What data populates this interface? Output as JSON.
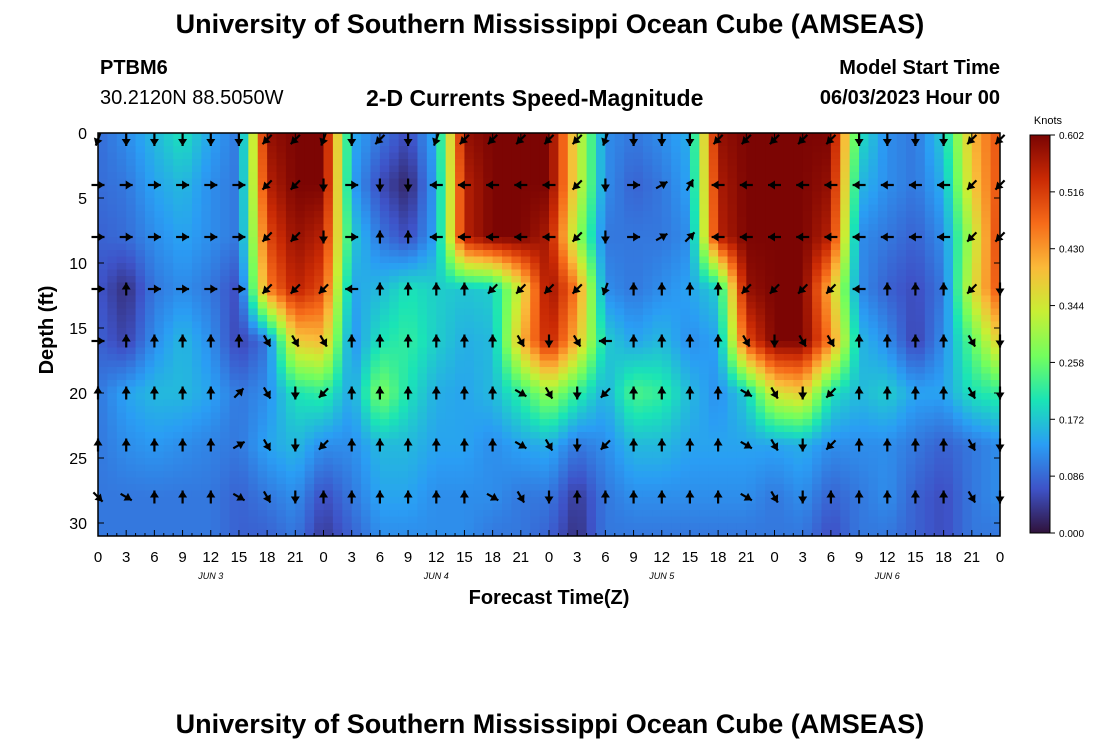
{
  "header": {
    "title": "University of Southern Mississippi Ocean Cube (AMSEAS)",
    "station": "PTBM6",
    "coords": "30.2120N  88.5050W",
    "plot_title": "2-D Currents Speed-Magnitude",
    "model_start_label": "Model Start Time",
    "model_start_value": "06/03/2023 Hour 00"
  },
  "footer": {
    "title": "University of Southern Mississippi Ocean Cube (AMSEAS)"
  },
  "chart_data": {
    "type": "heatmap",
    "title": "2-D Currents Speed-Magnitude",
    "xlabel": "Forecast Time(Z)",
    "ylabel": "Depth (ft)",
    "xlim": [
      0,
      96
    ],
    "ylim": [
      31,
      0
    ],
    "x_ticks": [
      0,
      3,
      6,
      9,
      12,
      15,
      18,
      21,
      24,
      27,
      30,
      33,
      36,
      39,
      42,
      45,
      48,
      51,
      54,
      57,
      60,
      63,
      66,
      69,
      72,
      75,
      78,
      81,
      84,
      87,
      90,
      93,
      96
    ],
    "x_tick_labels": [
      "0",
      "3",
      "6",
      "9",
      "12",
      "15",
      "18",
      "21",
      "0",
      "3",
      "6",
      "9",
      "12",
      "15",
      "18",
      "21",
      "0",
      "3",
      "6",
      "9",
      "12",
      "15",
      "18",
      "21",
      "0",
      "3",
      "6",
      "9",
      "12",
      "15",
      "18",
      "21",
      "0"
    ],
    "y_ticks": [
      0,
      5,
      10,
      15,
      20,
      25,
      30
    ],
    "y_tick_labels": [
      "0",
      "5",
      "10",
      "15",
      "20",
      "25",
      "30"
    ],
    "day_labels": [
      {
        "hour": 12,
        "label": "JUN 3"
      },
      {
        "hour": 36,
        "label": "JUN 4"
      },
      {
        "hour": 60,
        "label": "JUN 5"
      },
      {
        "hour": 84,
        "label": "JUN 6"
      }
    ],
    "colorbar": {
      "title": "Knots",
      "range": [
        0,
        0.602
      ],
      "ticks": [
        "0.602",
        "0.516",
        "0.430",
        "0.344",
        "0.258",
        "0.172",
        "0.086",
        "0.000"
      ],
      "colors": [
        "#30123b",
        "#3e53c8",
        "#2a9df4",
        "#1ae4b6",
        "#72fe5e",
        "#c8ef34",
        "#faba39",
        "#f66b19",
        "#ca2a04",
        "#7a0403"
      ]
    },
    "speed_field": {
      "hours": [
        0,
        3,
        6,
        9,
        12,
        15,
        18,
        21,
        24,
        27,
        30,
        33,
        36,
        39,
        42,
        45,
        48,
        51,
        54,
        57,
        60,
        63,
        66,
        69,
        72,
        75,
        78,
        81,
        84,
        87,
        90,
        93,
        96
      ],
      "depths": [
        0,
        4,
        8,
        12,
        16,
        20,
        24,
        28,
        31
      ],
      "values": [
        [
          0.09,
          0.12,
          0.16,
          0.2,
          0.14,
          0.1,
          0.58,
          0.6,
          0.6,
          0.15,
          0.1,
          0.06,
          0.15,
          0.58,
          0.6,
          0.6,
          0.6,
          0.35,
          0.12,
          0.1,
          0.12,
          0.15,
          0.58,
          0.6,
          0.6,
          0.6,
          0.6,
          0.2,
          0.12,
          0.1,
          0.18,
          0.4,
          0.5
        ],
        [
          0.09,
          0.1,
          0.14,
          0.16,
          0.12,
          0.1,
          0.55,
          0.6,
          0.6,
          0.14,
          0.06,
          0.02,
          0.14,
          0.55,
          0.6,
          0.6,
          0.6,
          0.35,
          0.12,
          0.08,
          0.1,
          0.14,
          0.56,
          0.6,
          0.6,
          0.6,
          0.58,
          0.16,
          0.12,
          0.1,
          0.15,
          0.38,
          0.5
        ],
        [
          0.08,
          0.09,
          0.12,
          0.14,
          0.12,
          0.1,
          0.5,
          0.58,
          0.55,
          0.18,
          0.1,
          0.06,
          0.14,
          0.55,
          0.6,
          0.6,
          0.56,
          0.3,
          0.1,
          0.1,
          0.1,
          0.12,
          0.55,
          0.6,
          0.6,
          0.6,
          0.55,
          0.12,
          0.1,
          0.08,
          0.12,
          0.32,
          0.52
        ],
        [
          0.07,
          0.03,
          0.1,
          0.12,
          0.1,
          0.06,
          0.45,
          0.55,
          0.5,
          0.14,
          0.16,
          0.2,
          0.18,
          0.17,
          0.18,
          0.35,
          0.58,
          0.45,
          0.12,
          0.1,
          0.12,
          0.14,
          0.18,
          0.58,
          0.6,
          0.6,
          0.4,
          0.12,
          0.08,
          0.06,
          0.1,
          0.35,
          0.5
        ],
        [
          0.08,
          0.05,
          0.12,
          0.16,
          0.12,
          0.05,
          0.1,
          0.38,
          0.4,
          0.12,
          0.2,
          0.22,
          0.18,
          0.15,
          0.16,
          0.4,
          0.55,
          0.4,
          0.18,
          0.14,
          0.16,
          0.12,
          0.14,
          0.5,
          0.6,
          0.6,
          0.45,
          0.16,
          0.12,
          0.05,
          0.12,
          0.25,
          0.38
        ],
        [
          0.1,
          0.14,
          0.16,
          0.16,
          0.14,
          0.1,
          0.12,
          0.2,
          0.22,
          0.14,
          0.28,
          0.2,
          0.15,
          0.14,
          0.16,
          0.22,
          0.3,
          0.22,
          0.15,
          0.24,
          0.22,
          0.16,
          0.12,
          0.18,
          0.35,
          0.38,
          0.2,
          0.16,
          0.18,
          0.14,
          0.14,
          0.2,
          0.22
        ],
        [
          0.1,
          0.12,
          0.13,
          0.12,
          0.11,
          0.1,
          0.14,
          0.16,
          0.12,
          0.12,
          0.16,
          0.16,
          0.14,
          0.14,
          0.12,
          0.14,
          0.15,
          0.1,
          0.12,
          0.16,
          0.16,
          0.14,
          0.14,
          0.14,
          0.14,
          0.15,
          0.12,
          0.12,
          0.12,
          0.1,
          0.08,
          0.1,
          0.12
        ],
        [
          0.1,
          0.1,
          0.1,
          0.1,
          0.1,
          0.08,
          0.1,
          0.12,
          0.06,
          0.1,
          0.14,
          0.14,
          0.12,
          0.12,
          0.12,
          0.1,
          0.1,
          0.04,
          0.1,
          0.12,
          0.12,
          0.12,
          0.12,
          0.12,
          0.1,
          0.12,
          0.08,
          0.1,
          0.12,
          0.08,
          0.06,
          0.1,
          0.12
        ],
        [
          0.1,
          0.1,
          0.1,
          0.1,
          0.1,
          0.08,
          0.08,
          0.1,
          0.04,
          0.08,
          0.12,
          0.12,
          0.12,
          0.12,
          0.1,
          0.1,
          0.08,
          0.03,
          0.1,
          0.1,
          0.1,
          0.1,
          0.1,
          0.1,
          0.1,
          0.1,
          0.06,
          0.1,
          0.1,
          0.08,
          0.06,
          0.1,
          0.1
        ]
      ]
    },
    "vectors": {
      "hours": [
        0,
        3,
        6,
        9,
        12,
        15,
        18,
        21,
        24,
        27,
        30,
        33,
        36,
        39,
        42,
        45,
        48,
        51,
        54,
        57,
        60,
        63,
        66,
        69,
        72,
        75,
        78,
        81,
        84,
        87,
        90,
        93,
        96
      ],
      "depths": [
        0.5,
        4,
        8,
        12,
        16,
        20,
        24,
        28
      ],
      "directions_deg": [
        [
          200,
          180,
          180,
          180,
          180,
          180,
          225,
          225,
          200,
          180,
          225,
          180,
          200,
          225,
          225,
          225,
          225,
          225,
          200,
          180,
          180,
          180,
          225,
          225,
          225,
          225,
          225,
          180,
          180,
          180,
          180,
          225,
          225
        ],
        [
          90,
          90,
          90,
          90,
          90,
          90,
          225,
          225,
          180,
          90,
          180,
          180,
          270,
          270,
          270,
          270,
          270,
          225,
          180,
          90,
          60,
          30,
          270,
          270,
          270,
          270,
          270,
          270,
          270,
          270,
          270,
          225,
          225
        ],
        [
          90,
          90,
          90,
          90,
          90,
          90,
          225,
          225,
          180,
          90,
          0,
          0,
          270,
          270,
          270,
          270,
          270,
          225,
          180,
          90,
          60,
          45,
          270,
          270,
          270,
          270,
          270,
          270,
          270,
          270,
          270,
          225,
          225
        ],
        [
          90,
          0,
          90,
          90,
          90,
          90,
          225,
          225,
          225,
          270,
          0,
          0,
          0,
          0,
          225,
          225,
          225,
          225,
          200,
          0,
          0,
          0,
          0,
          225,
          225,
          225,
          225,
          270,
          0,
          0,
          0,
          225,
          180
        ],
        [
          90,
          0,
          0,
          0,
          0,
          0,
          150,
          150,
          150,
          0,
          0,
          0,
          0,
          0,
          0,
          150,
          180,
          150,
          270,
          0,
          0,
          0,
          0,
          150,
          180,
          150,
          150,
          0,
          0,
          0,
          0,
          150,
          180
        ],
        [
          0,
          0,
          0,
          0,
          0,
          45,
          150,
          180,
          225,
          0,
          0,
          0,
          0,
          0,
          0,
          120,
          150,
          180,
          225,
          0,
          0,
          0,
          0,
          120,
          150,
          180,
          225,
          0,
          0,
          0,
          0,
          150,
          180
        ],
        [
          0,
          0,
          0,
          0,
          0,
          60,
          150,
          180,
          225,
          0,
          0,
          0,
          0,
          0,
          0,
          120,
          150,
          180,
          225,
          0,
          0,
          0,
          0,
          120,
          150,
          180,
          225,
          0,
          0,
          0,
          0,
          150,
          180
        ],
        [
          135,
          120,
          0,
          0,
          0,
          120,
          150,
          180,
          0,
          0,
          0,
          0,
          0,
          0,
          120,
          150,
          180,
          0,
          0,
          0,
          0,
          0,
          0,
          120,
          150,
          180,
          0,
          0,
          0,
          0,
          0,
          150,
          180
        ]
      ]
    }
  }
}
